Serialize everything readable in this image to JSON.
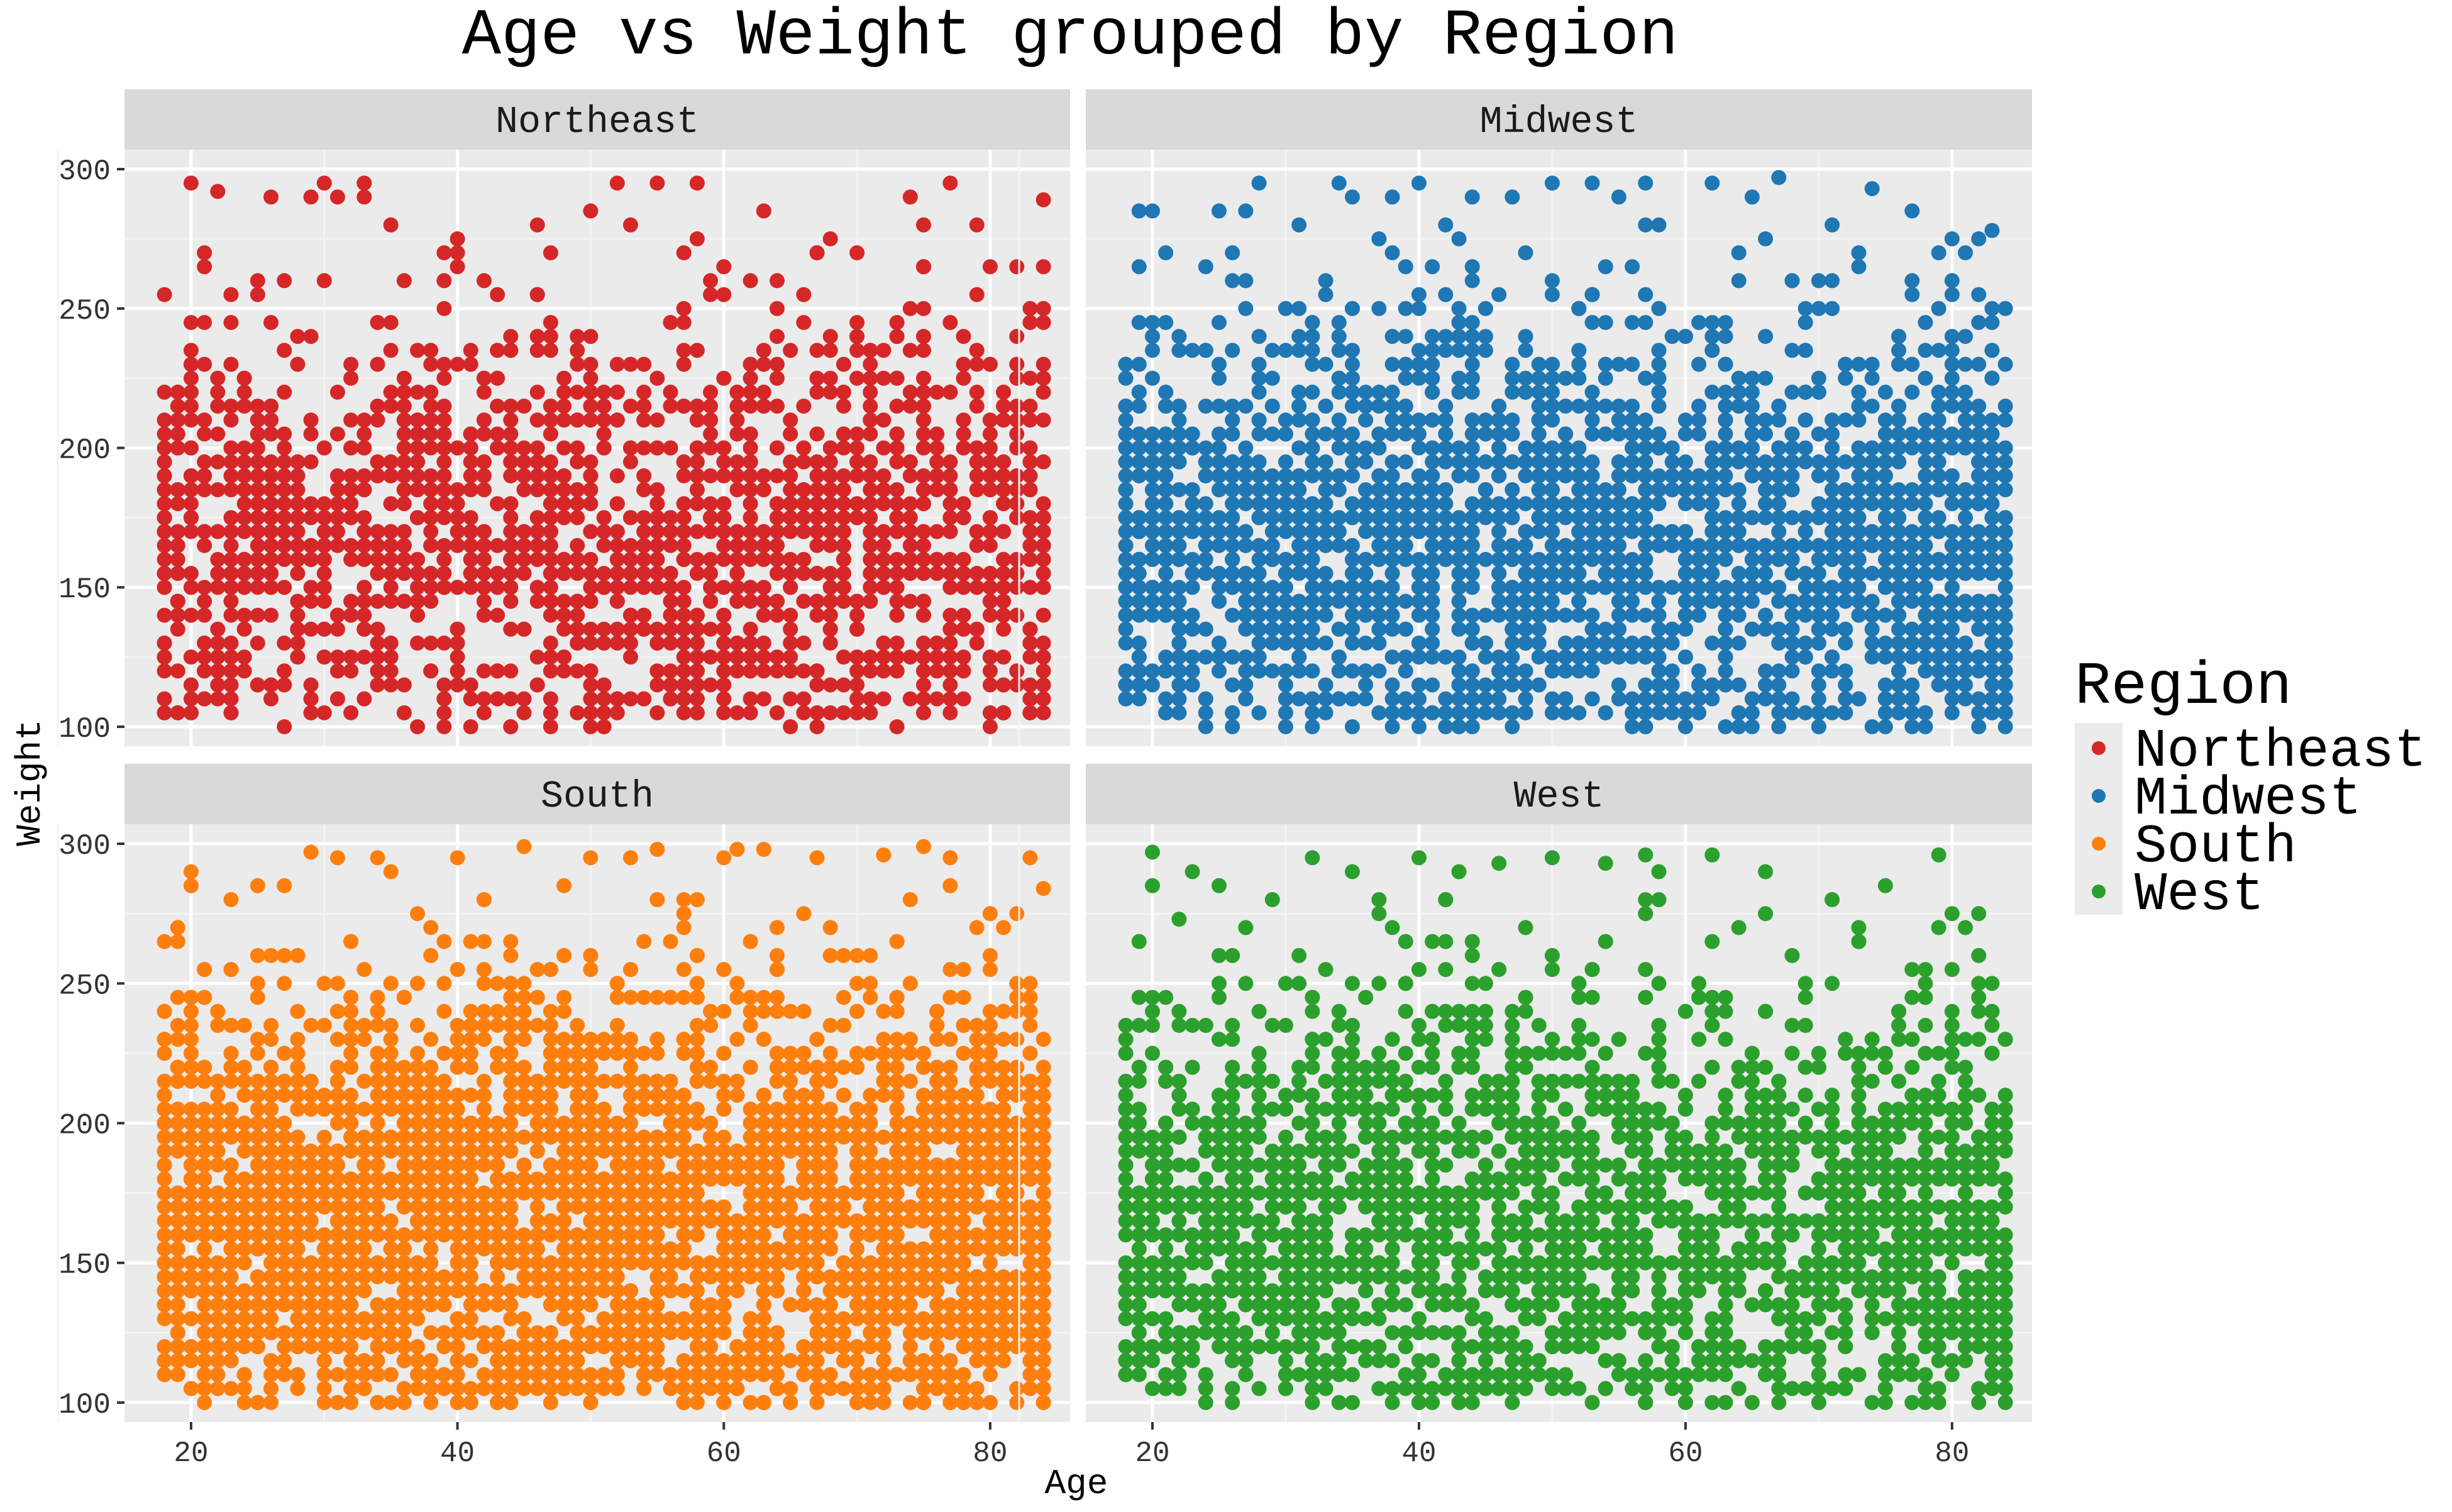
{
  "chart_data": {
    "type": "scatter",
    "title": "Age vs Weight grouped by Region",
    "xlabel": "Age",
    "ylabel": "Weight",
    "xlim": [
      15,
      86
    ],
    "ylim": [
      93,
      307
    ],
    "x_ticks": [
      20,
      40,
      60,
      80
    ],
    "y_ticks": [
      100,
      150,
      200,
      250,
      300
    ],
    "grid": true,
    "facet": {
      "by": "Region",
      "layout": "2x2",
      "panels": [
        "Northeast",
        "Midwest",
        "South",
        "West"
      ]
    },
    "legend": {
      "title": "Region",
      "placement": "right",
      "entries": [
        "Northeast",
        "Midwest",
        "South",
        "West"
      ]
    },
    "colors": {
      "Northeast": "#d62728",
      "Midwest": "#1f77b4",
      "South": "#ff7f0e",
      "West": "#2ca02c"
    },
    "series_note": "Each panel shows several thousand individual points; sample points listed below per region",
    "series": [
      {
        "name": "Northeast",
        "points": [
          [
            18,
            130
          ],
          [
            19,
            200
          ],
          [
            20,
            295
          ],
          [
            21,
            265
          ],
          [
            22,
            292
          ],
          [
            23,
            230
          ],
          [
            24,
            160
          ],
          [
            26,
            290
          ],
          [
            27,
            180
          ],
          [
            29,
            290
          ],
          [
            30,
            260
          ],
          [
            31,
            290
          ],
          [
            32,
            140
          ],
          [
            33,
            290
          ],
          [
            35,
            280
          ],
          [
            37,
            100
          ],
          [
            38,
            230
          ],
          [
            40,
            270
          ],
          [
            41,
            150
          ],
          [
            42,
            110
          ],
          [
            43,
            225
          ],
          [
            44,
            175
          ],
          [
            46,
            280
          ],
          [
            47,
            240
          ],
          [
            48,
            160
          ],
          [
            50,
            285
          ],
          [
            52,
            295
          ],
          [
            53,
            200
          ],
          [
            54,
            140
          ],
          [
            55,
            295
          ],
          [
            57,
            270
          ],
          [
            58,
            295
          ],
          [
            59,
            180
          ],
          [
            60,
            110
          ],
          [
            61,
            150
          ],
          [
            62,
            230
          ],
          [
            63,
            285
          ],
          [
            64,
            260
          ],
          [
            65,
            100
          ],
          [
            66,
            200
          ],
          [
            67,
            270
          ],
          [
            68,
            140
          ],
          [
            69,
            180
          ],
          [
            70,
            105
          ],
          [
            71,
            220
          ],
          [
            72,
            150
          ],
          [
            73,
            240
          ],
          [
            74,
            290
          ],
          [
            75,
            130
          ],
          [
            76,
            200
          ],
          [
            77,
            295
          ],
          [
            78,
            160
          ],
          [
            79,
            280
          ],
          [
            80,
            120
          ],
          [
            81,
            190
          ],
          [
            82,
            230
          ],
          [
            83,
            170
          ],
          [
            84,
            289
          ],
          [
            84,
            110
          ],
          [
            45,
            200
          ],
          [
            50,
            170
          ],
          [
            55,
            160
          ],
          [
            60,
            180
          ],
          [
            65,
            150
          ],
          [
            70,
            190
          ],
          [
            75,
            170
          ],
          [
            80,
            140
          ],
          [
            25,
            150
          ],
          [
            30,
            175
          ],
          [
            35,
            165
          ],
          [
            40,
            150
          ],
          [
            28,
            130
          ],
          [
            33,
            200
          ],
          [
            39,
            190
          ],
          [
            48,
            135
          ],
          [
            52,
            210
          ],
          [
            58,
            140
          ],
          [
            62,
            175
          ],
          [
            67,
            205
          ],
          [
            72,
            165
          ],
          [
            77,
            140
          ],
          [
            82,
            150
          ]
        ]
      },
      {
        "name": "Midwest",
        "points": [
          [
            18,
            200
          ],
          [
            19,
            285
          ],
          [
            20,
            150
          ],
          [
            21,
            270
          ],
          [
            22,
            120
          ],
          [
            24,
            265
          ],
          [
            25,
            230
          ],
          [
            26,
            270
          ],
          [
            27,
            285
          ],
          [
            28,
            295
          ],
          [
            29,
            180
          ],
          [
            30,
            140
          ],
          [
            31,
            280
          ],
          [
            32,
            220
          ],
          [
            33,
            260
          ],
          [
            34,
            295
          ],
          [
            35,
            290
          ],
          [
            36,
            110
          ],
          [
            37,
            170
          ],
          [
            38,
            290
          ],
          [
            39,
            230
          ],
          [
            40,
            250
          ],
          [
            42,
            100
          ],
          [
            43,
            275
          ],
          [
            44,
            290
          ],
          [
            45,
            160
          ],
          [
            46,
            200
          ],
          [
            47,
            290
          ],
          [
            48,
            270
          ],
          [
            50,
            295
          ],
          [
            51,
            120
          ],
          [
            52,
            250
          ],
          [
            53,
            295
          ],
          [
            55,
            290
          ],
          [
            56,
            100
          ],
          [
            57,
            295
          ],
          [
            58,
            180
          ],
          [
            60,
            240
          ],
          [
            61,
            140
          ],
          [
            62,
            295
          ],
          [
            63,
            220
          ],
          [
            64,
            100
          ],
          [
            65,
            290
          ],
          [
            66,
            160
          ],
          [
            67,
            297
          ],
          [
            68,
            200
          ],
          [
            69,
            250
          ],
          [
            70,
            100
          ],
          [
            71,
            280
          ],
          [
            72,
            150
          ],
          [
            73,
            270
          ],
          [
            74,
            293
          ],
          [
            75,
            210
          ],
          [
            76,
            130
          ],
          [
            77,
            285
          ],
          [
            78,
            170
          ],
          [
            79,
            250
          ],
          [
            80,
            105
          ],
          [
            81,
            200
          ],
          [
            82,
            255
          ],
          [
            83,
            278
          ],
          [
            84,
            110
          ],
          [
            84,
            250
          ],
          [
            45,
            180
          ],
          [
            50,
            170
          ],
          [
            55,
            150
          ],
          [
            60,
            190
          ],
          [
            65,
            175
          ],
          [
            70,
            160
          ],
          [
            75,
            180
          ],
          [
            80,
            150
          ],
          [
            25,
            165
          ],
          [
            30,
            190
          ],
          [
            35,
            150
          ],
          [
            40,
            170
          ],
          [
            48,
            140
          ],
          [
            53,
            205
          ],
          [
            58,
            165
          ],
          [
            63,
            185
          ],
          [
            68,
            145
          ],
          [
            73,
            195
          ],
          [
            78,
            155
          ],
          [
            83,
            175
          ]
        ]
      },
      {
        "name": "South",
        "points": [
          [
            18,
            265
          ],
          [
            19,
            150
          ],
          [
            20,
            290
          ],
          [
            21,
            100
          ],
          [
            22,
            120
          ],
          [
            23,
            280
          ],
          [
            24,
            200
          ],
          [
            25,
            250
          ],
          [
            26,
            190
          ],
          [
            27,
            285
          ],
          [
            28,
            110
          ],
          [
            29,
            297
          ],
          [
            30,
            100
          ],
          [
            31,
            295
          ],
          [
            32,
            230
          ],
          [
            33,
            160
          ],
          [
            34,
            295
          ],
          [
            35,
            290
          ],
          [
            36,
            100
          ],
          [
            37,
            180
          ],
          [
            38,
            260
          ],
          [
            39,
            140
          ],
          [
            40,
            210
          ],
          [
            41,
            100
          ],
          [
            42,
            280
          ],
          [
            43,
            170
          ],
          [
            44,
            250
          ],
          [
            45,
            299
          ],
          [
            46,
            120
          ],
          [
            47,
            200
          ],
          [
            48,
            285
          ],
          [
            49,
            160
          ],
          [
            50,
            295
          ],
          [
            51,
            230
          ],
          [
            52,
            110
          ],
          [
            53,
            295
          ],
          [
            54,
            190
          ],
          [
            55,
            298
          ],
          [
            56,
            140
          ],
          [
            57,
            270
          ],
          [
            58,
            100
          ],
          [
            59,
            220
          ],
          [
            60,
            295
          ],
          [
            61,
            298
          ],
          [
            62,
            160
          ],
          [
            63,
            298
          ],
          [
            64,
            240
          ],
          [
            65,
            100
          ],
          [
            66,
            180
          ],
          [
            67,
            295
          ],
          [
            68,
            130
          ],
          [
            69,
            260
          ],
          [
            70,
            200
          ],
          [
            71,
            100
          ],
          [
            72,
            296
          ],
          [
            73,
            150
          ],
          [
            74,
            280
          ],
          [
            75,
            299
          ],
          [
            76,
            170
          ],
          [
            77,
            295
          ],
          [
            78,
            110
          ],
          [
            79,
            230
          ],
          [
            80,
            275
          ],
          [
            81,
            140
          ],
          [
            82,
            200
          ],
          [
            83,
            295
          ],
          [
            84,
            284
          ],
          [
            84,
            100
          ],
          [
            45,
            175
          ],
          [
            50,
            165
          ],
          [
            55,
            150
          ],
          [
            60,
            185
          ],
          [
            65,
            170
          ],
          [
            70,
            160
          ],
          [
            75,
            175
          ],
          [
            80,
            155
          ],
          [
            25,
            170
          ],
          [
            30,
            160
          ],
          [
            35,
            180
          ],
          [
            40,
            165
          ]
        ]
      },
      {
        "name": "West",
        "points": [
          [
            18,
            235
          ],
          [
            19,
            110
          ],
          [
            20,
            297
          ],
          [
            21,
            180
          ],
          [
            22,
            273
          ],
          [
            23,
            290
          ],
          [
            24,
            150
          ],
          [
            25,
            250
          ],
          [
            26,
            120
          ],
          [
            27,
            270
          ],
          [
            28,
            200
          ],
          [
            29,
            280
          ],
          [
            30,
            110
          ],
          [
            31,
            260
          ],
          [
            32,
            295
          ],
          [
            33,
            160
          ],
          [
            34,
            100
          ],
          [
            35,
            290
          ],
          [
            36,
            220
          ],
          [
            37,
            280
          ],
          [
            38,
            140
          ],
          [
            39,
            250
          ],
          [
            40,
            100
          ],
          [
            41,
            190
          ],
          [
            42,
            280
          ],
          [
            43,
            290
          ],
          [
            44,
            150
          ],
          [
            45,
            230
          ],
          [
            46,
            293
          ],
          [
            47,
            110
          ],
          [
            48,
            270
          ],
          [
            49,
            180
          ],
          [
            50,
            295
          ],
          [
            51,
            140
          ],
          [
            52,
            250
          ],
          [
            53,
            100
          ],
          [
            54,
            293
          ],
          [
            55,
            200
          ],
          [
            56,
            160
          ],
          [
            57,
            296
          ],
          [
            58,
            290
          ],
          [
            59,
            120
          ],
          [
            60,
            240
          ],
          [
            61,
            190
          ],
          [
            62,
            296
          ],
          [
            63,
            150
          ],
          [
            64,
            270
          ],
          [
            65,
            100
          ],
          [
            66,
            290
          ],
          [
            67,
            210
          ],
          [
            68,
            140
          ],
          [
            69,
            250
          ],
          [
            70,
            180
          ],
          [
            71,
            280
          ],
          [
            72,
            120
          ],
          [
            73,
            270
          ],
          [
            74,
            160
          ],
          [
            75,
            285
          ],
          [
            76,
            230
          ],
          [
            77,
            100
          ],
          [
            78,
            250
          ],
          [
            79,
            296
          ],
          [
            80,
            200
          ],
          [
            81,
            140
          ],
          [
            82,
            260
          ],
          [
            83,
            180
          ],
          [
            84,
            230
          ],
          [
            84,
            105
          ],
          [
            45,
            175
          ],
          [
            50,
            165
          ],
          [
            55,
            185
          ],
          [
            60,
            160
          ],
          [
            65,
            175
          ],
          [
            70,
            165
          ],
          [
            75,
            180
          ],
          [
            80,
            150
          ],
          [
            25,
            170
          ],
          [
            30,
            185
          ],
          [
            35,
            160
          ],
          [
            40,
            175
          ]
        ]
      }
    ]
  }
}
